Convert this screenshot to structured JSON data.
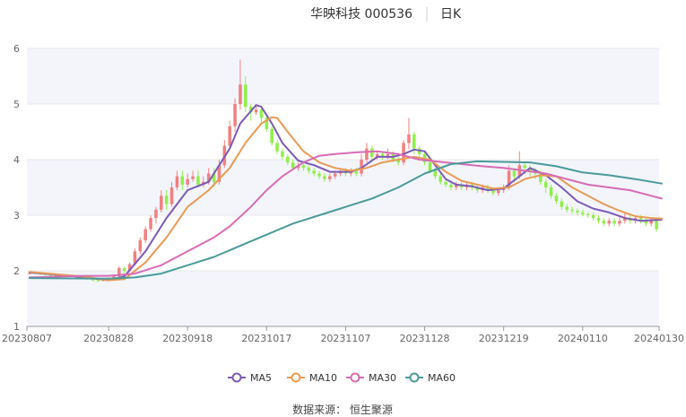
{
  "header": {
    "name_code": "华映科技 000536",
    "period": "日K"
  },
  "source": "数据来源： 恒生聚源",
  "colors": {
    "up": "#f08080",
    "down": "#90ee4a",
    "band": "#f3f5fb",
    "grid": "#e8e8e8",
    "axis": "#999999"
  },
  "chart_data": {
    "type": "candlestick",
    "title": "",
    "xlabel": "",
    "ylabel": "",
    "ylim": [
      1,
      6
    ],
    "yticks": [
      1,
      2,
      3,
      4,
      5,
      6
    ],
    "x_tick_labels": [
      "20230807",
      "20230828",
      "20230918",
      "20231017",
      "20231107",
      "20231128",
      "20231219",
      "20240110",
      "20240130"
    ],
    "x_tick_index": [
      0,
      15,
      30,
      45,
      60,
      75,
      90,
      105,
      120
    ],
    "candles": [
      [
        1.95,
        1.96,
        1.97,
        1.94
      ],
      [
        1.96,
        1.95,
        1.97,
        1.94
      ],
      [
        1.95,
        1.94,
        1.96,
        1.93
      ],
      [
        1.94,
        1.93,
        1.95,
        1.92
      ],
      [
        1.93,
        1.92,
        1.94,
        1.91
      ],
      [
        1.92,
        1.91,
        1.93,
        1.9
      ],
      [
        1.91,
        1.9,
        1.92,
        1.89
      ],
      [
        1.9,
        1.91,
        1.92,
        1.89
      ],
      [
        1.91,
        1.9,
        1.92,
        1.89
      ],
      [
        1.9,
        1.88,
        1.91,
        1.87
      ],
      [
        1.88,
        1.87,
        1.89,
        1.86
      ],
      [
        1.87,
        1.85,
        1.88,
        1.84
      ],
      [
        1.85,
        1.83,
        1.86,
        1.81
      ],
      [
        1.83,
        1.82,
        1.84,
        1.8
      ],
      [
        1.82,
        1.84,
        1.86,
        1.81
      ],
      [
        1.84,
        1.86,
        1.88,
        1.83
      ],
      [
        1.86,
        1.9,
        1.92,
        1.85
      ],
      [
        1.9,
        2.05,
        2.08,
        1.88
      ],
      [
        2.05,
        2,
        2.08,
        1.96
      ],
      [
        2,
        2.12,
        2.15,
        1.98
      ],
      [
        2.12,
        2.35,
        2.4,
        2.1
      ],
      [
        2.35,
        2.55,
        2.6,
        2.3
      ],
      [
        2.55,
        2.75,
        2.8,
        2.5
      ],
      [
        2.75,
        2.95,
        3.0,
        2.7
      ],
      [
        2.95,
        3.1,
        3.15,
        2.85
      ],
      [
        3.1,
        3.35,
        3.45,
        3.05
      ],
      [
        3.35,
        3.2,
        3.45,
        3.1
      ],
      [
        3.2,
        3.5,
        3.6,
        3.15
      ],
      [
        3.5,
        3.7,
        3.8,
        3.45
      ],
      [
        3.7,
        3.55,
        3.8,
        3.45
      ],
      [
        3.55,
        3.65,
        3.75,
        3.5
      ],
      [
        3.65,
        3.7,
        3.8,
        3.6
      ],
      [
        3.7,
        3.55,
        3.8,
        3.5
      ],
      [
        3.55,
        3.6,
        3.7,
        3.5
      ],
      [
        3.6,
        3.75,
        3.85,
        3.55
      ],
      [
        3.75,
        3.6,
        3.85,
        3.5
      ],
      [
        3.6,
        3.9,
        4.0,
        3.55
      ],
      [
        3.9,
        4.25,
        4.35,
        3.85
      ],
      [
        4.25,
        4.6,
        4.7,
        4.2
      ],
      [
        4.6,
        5.0,
        5.1,
        4.5
      ],
      [
        5.0,
        5.35,
        5.8,
        4.9
      ],
      [
        5.35,
        4.95,
        5.5,
        4.85
      ],
      [
        4.95,
        4.85,
        5.0,
        4.7
      ],
      [
        4.85,
        4.9,
        5.0,
        4.8
      ],
      [
        4.9,
        4.75,
        4.95,
        4.65
      ],
      [
        4.75,
        4.55,
        4.8,
        4.5
      ],
      [
        4.55,
        4.3,
        4.6,
        4.25
      ],
      [
        4.3,
        4.15,
        4.35,
        4.1
      ],
      [
        4.15,
        4.05,
        4.2,
        4.0
      ],
      [
        4.05,
        3.95,
        4.1,
        3.9
      ],
      [
        3.95,
        3.85,
        4.0,
        3.8
      ],
      [
        3.85,
        3.9,
        3.95,
        3.8
      ],
      [
        3.9,
        3.85,
        3.95,
        3.8
      ],
      [
        3.85,
        3.8,
        3.9,
        3.75
      ],
      [
        3.8,
        3.75,
        3.85,
        3.7
      ],
      [
        3.75,
        3.7,
        3.8,
        3.65
      ],
      [
        3.7,
        3.65,
        3.75,
        3.6
      ],
      [
        3.65,
        3.7,
        3.75,
        3.6
      ],
      [
        3.7,
        3.75,
        3.8,
        3.65
      ],
      [
        3.75,
        3.8,
        3.85,
        3.7
      ],
      [
        3.8,
        3.75,
        3.85,
        3.7
      ],
      [
        3.75,
        3.8,
        3.85,
        3.7
      ],
      [
        3.8,
        3.75,
        3.85,
        3.7
      ],
      [
        3.75,
        4.0,
        4.1,
        3.7
      ],
      [
        4.0,
        4.2,
        4.3,
        3.95
      ],
      [
        4.2,
        4.05,
        4.25,
        4.0
      ],
      [
        4.05,
        4.1,
        4.15,
        4.0
      ],
      [
        4.1,
        4.05,
        4.15,
        4.0
      ],
      [
        4.05,
        4.1,
        4.2,
        4.0
      ],
      [
        4.1,
        4.0,
        4.15,
        3.95
      ],
      [
        4.0,
        3.95,
        4.05,
        3.9
      ],
      [
        3.95,
        4.3,
        4.35,
        3.9
      ],
      [
        4.3,
        4.45,
        4.75,
        4.2
      ],
      [
        4.45,
        4.2,
        4.5,
        4.1
      ],
      [
        4.2,
        4.1,
        4.25,
        4.0
      ],
      [
        4.1,
        3.95,
        4.15,
        3.9
      ],
      [
        3.95,
        3.8,
        4.0,
        3.75
      ],
      [
        3.8,
        3.7,
        3.85,
        3.65
      ],
      [
        3.7,
        3.6,
        3.75,
        3.55
      ],
      [
        3.6,
        3.55,
        3.65,
        3.5
      ],
      [
        3.55,
        3.5,
        3.6,
        3.45
      ],
      [
        3.5,
        3.55,
        3.6,
        3.45
      ],
      [
        3.55,
        3.5,
        3.6,
        3.45
      ],
      [
        3.5,
        3.55,
        3.6,
        3.45
      ],
      [
        3.55,
        3.5,
        3.6,
        3.45
      ],
      [
        3.5,
        3.45,
        3.55,
        3.4
      ],
      [
        3.45,
        3.5,
        3.55,
        3.4
      ],
      [
        3.5,
        3.45,
        3.55,
        3.4
      ],
      [
        3.45,
        3.4,
        3.5,
        3.35
      ],
      [
        3.4,
        3.45,
        3.5,
        3.35
      ],
      [
        3.45,
        3.5,
        3.55,
        3.4
      ],
      [
        3.5,
        3.8,
        3.9,
        3.45
      ],
      [
        3.8,
        3.7,
        3.85,
        3.6
      ],
      [
        3.7,
        3.9,
        4.15,
        3.65
      ],
      [
        3.9,
        3.85,
        3.95,
        3.75
      ],
      [
        3.85,
        3.8,
        3.9,
        3.7
      ],
      [
        3.8,
        3.75,
        3.85,
        3.65
      ],
      [
        3.75,
        3.6,
        3.8,
        3.55
      ],
      [
        3.6,
        3.5,
        3.65,
        3.4
      ],
      [
        3.5,
        3.35,
        3.55,
        3.3
      ],
      [
        3.35,
        3.25,
        3.4,
        3.2
      ],
      [
        3.25,
        3.15,
        3.3,
        3.1
      ],
      [
        3.15,
        3.1,
        3.2,
        3.05
      ],
      [
        3.1,
        3.08,
        3.15,
        3.02
      ],
      [
        3.08,
        3.05,
        3.12,
        3.0
      ],
      [
        3.05,
        3.02,
        3.1,
        2.98
      ],
      [
        3.02,
        3.0,
        3.06,
        2.95
      ],
      [
        3.0,
        2.95,
        3.05,
        2.9
      ],
      [
        2.95,
        2.9,
        3.0,
        2.85
      ],
      [
        2.9,
        2.85,
        2.95,
        2.8
      ],
      [
        2.85,
        2.9,
        2.95,
        2.8
      ],
      [
        2.9,
        2.85,
        2.95,
        2.8
      ],
      [
        2.85,
        2.9,
        3.0,
        2.8
      ],
      [
        2.9,
        2.95,
        3.05,
        2.85
      ],
      [
        2.95,
        2.9,
        3.0,
        2.85
      ],
      [
        2.9,
        2.95,
        3.0,
        2.85
      ],
      [
        2.95,
        2.9,
        3.0,
        2.85
      ],
      [
        2.9,
        2.85,
        2.95,
        2.8
      ],
      [
        2.85,
        2.9,
        2.95,
        2.8
      ],
      [
        2.9,
        2.75,
        2.92,
        2.7
      ]
    ],
    "ma_series": [
      {
        "name": "MA5",
        "color": "#7b5ab5",
        "points": [
          [
            0,
            1.97
          ],
          [
            8,
            1.91
          ],
          [
            15,
            1.83
          ],
          [
            18,
            1.9
          ],
          [
            22,
            2.35
          ],
          [
            26,
            2.95
          ],
          [
            30,
            3.45
          ],
          [
            34,
            3.6
          ],
          [
            38,
            4.2
          ],
          [
            40,
            4.65
          ],
          [
            43,
            4.98
          ],
          [
            44,
            4.95
          ],
          [
            46,
            4.65
          ],
          [
            48,
            4.3
          ],
          [
            51,
            3.98
          ],
          [
            54,
            3.9
          ],
          [
            57,
            3.78
          ],
          [
            61,
            3.78
          ],
          [
            63,
            3.85
          ],
          [
            66,
            4.05
          ],
          [
            69,
            4.05
          ],
          [
            71,
            4.1
          ],
          [
            73,
            4.18
          ],
          [
            75,
            4.15
          ],
          [
            77,
            3.9
          ],
          [
            79,
            3.65
          ],
          [
            81,
            3.55
          ],
          [
            84,
            3.52
          ],
          [
            87,
            3.45
          ],
          [
            90,
            3.48
          ],
          [
            93,
            3.7
          ],
          [
            95,
            3.85
          ],
          [
            98,
            3.72
          ],
          [
            101,
            3.5
          ],
          [
            104,
            3.25
          ],
          [
            107,
            3.12
          ],
          [
            110,
            3.05
          ],
          [
            113,
            2.95
          ],
          [
            116,
            2.9
          ],
          [
            120,
            2.92
          ]
        ]
      },
      {
        "name": "MA10",
        "color": "#e89a54",
        "points": [
          [
            0,
            1.98
          ],
          [
            10,
            1.9
          ],
          [
            15,
            1.83
          ],
          [
            18,
            1.85
          ],
          [
            22,
            2.15
          ],
          [
            26,
            2.6
          ],
          [
            30,
            3.15
          ],
          [
            34,
            3.45
          ],
          [
            38,
            3.85
          ],
          [
            41,
            4.3
          ],
          [
            44,
            4.65
          ],
          [
            46,
            4.76
          ],
          [
            47,
            4.75
          ],
          [
            49,
            4.5
          ],
          [
            52,
            4.15
          ],
          [
            55,
            3.95
          ],
          [
            58,
            3.85
          ],
          [
            61,
            3.8
          ],
          [
            64,
            3.85
          ],
          [
            67,
            3.95
          ],
          [
            70,
            4.0
          ],
          [
            73,
            4.05
          ],
          [
            76,
            4.0
          ],
          [
            79,
            3.78
          ],
          [
            82,
            3.62
          ],
          [
            85,
            3.55
          ],
          [
            88,
            3.48
          ],
          [
            91,
            3.5
          ],
          [
            94,
            3.65
          ],
          [
            97,
            3.72
          ],
          [
            100,
            3.7
          ],
          [
            103,
            3.5
          ],
          [
            106,
            3.35
          ],
          [
            109,
            3.2
          ],
          [
            112,
            3.08
          ],
          [
            115,
            2.98
          ],
          [
            118,
            2.95
          ],
          [
            120,
            2.94
          ]
        ]
      },
      {
        "name": "MA30",
        "color": "#d76bb5",
        "points": [
          [
            0,
            1.88
          ],
          [
            10,
            1.91
          ],
          [
            15,
            1.91
          ],
          [
            20,
            1.95
          ],
          [
            25,
            2.1
          ],
          [
            30,
            2.35
          ],
          [
            35,
            2.6
          ],
          [
            38,
            2.8
          ],
          [
            42,
            3.15
          ],
          [
            45,
            3.45
          ],
          [
            48,
            3.7
          ],
          [
            52,
            3.95
          ],
          [
            55,
            4.07
          ],
          [
            58,
            4.1
          ],
          [
            62,
            4.13
          ],
          [
            66,
            4.15
          ],
          [
            70,
            4.1
          ],
          [
            74,
            4.0
          ],
          [
            78,
            3.96
          ],
          [
            82,
            3.92
          ],
          [
            86,
            3.88
          ],
          [
            90,
            3.85
          ],
          [
            94,
            3.8
          ],
          [
            98,
            3.75
          ],
          [
            102,
            3.65
          ],
          [
            106,
            3.55
          ],
          [
            110,
            3.5
          ],
          [
            114,
            3.45
          ],
          [
            118,
            3.35
          ],
          [
            120,
            3.3
          ]
        ]
      },
      {
        "name": "MA60",
        "color": "#4a9a9a",
        "points": [
          [
            0,
            1.87
          ],
          [
            15,
            1.86
          ],
          [
            20,
            1.88
          ],
          [
            25,
            1.95
          ],
          [
            30,
            2.1
          ],
          [
            35,
            2.25
          ],
          [
            40,
            2.45
          ],
          [
            45,
            2.65
          ],
          [
            50,
            2.85
          ],
          [
            55,
            3.0
          ],
          [
            60,
            3.15
          ],
          [
            65,
            3.3
          ],
          [
            70,
            3.5
          ],
          [
            75,
            3.75
          ],
          [
            80,
            3.92
          ],
          [
            85,
            3.97
          ],
          [
            90,
            3.96
          ],
          [
            95,
            3.95
          ],
          [
            100,
            3.88
          ],
          [
            105,
            3.77
          ],
          [
            110,
            3.72
          ],
          [
            115,
            3.65
          ],
          [
            120,
            3.57
          ]
        ]
      }
    ],
    "legend": [
      "MA5",
      "MA10",
      "MA30",
      "MA60"
    ],
    "legend_position": "bottom",
    "grid": true
  }
}
